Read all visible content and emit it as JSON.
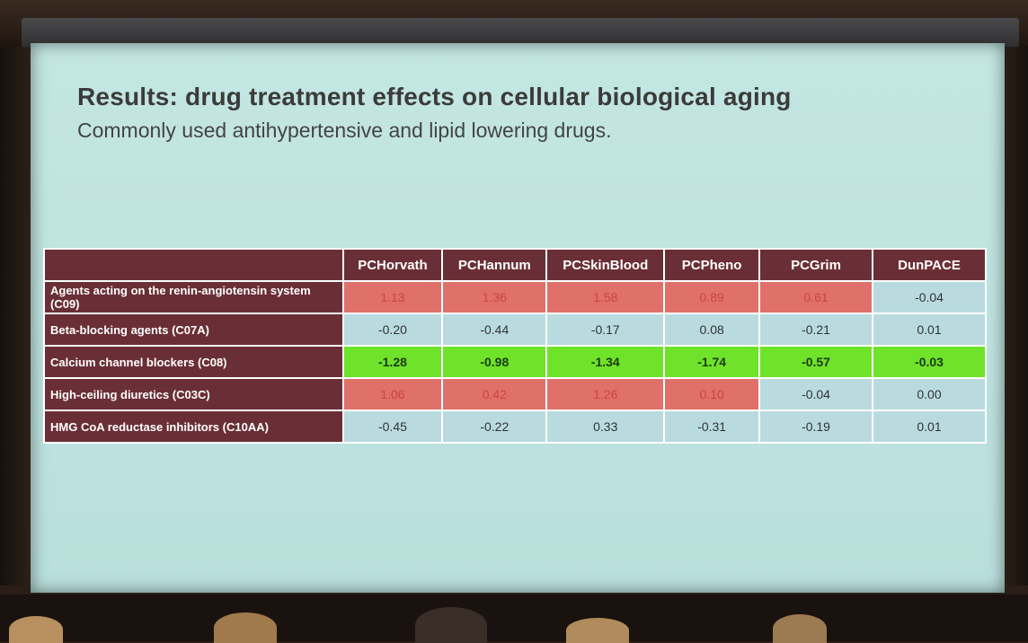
{
  "slide": {
    "title": "Results: drug treatment effects on cellular biological aging",
    "subtitle": "Commonly used antihypertensive and lipid lowering drugs."
  },
  "table": {
    "columns": [
      "PCHorvath",
      "PCHannum",
      "PCSkinBlood",
      "PCPheno",
      "PCGrim",
      "DunPACE"
    ],
    "rows": [
      {
        "label": "Agents acting on the renin-angiotensin system (C09)",
        "values": [
          "1.13",
          "1.36",
          "1.58",
          "0.89",
          "0.61",
          "-0.04"
        ]
      },
      {
        "label": "Beta-blocking agents (C07A)",
        "values": [
          "-0.20",
          "-0.44",
          "-0.17",
          "0.08",
          "-0.21",
          "0.01"
        ]
      },
      {
        "label": "Calcium channel blockers (C08)",
        "values": [
          "-1.28",
          "-0.98",
          "-1.34",
          "-1.74",
          "-0.57",
          "-0.03"
        ]
      },
      {
        "label": "High-ceiling diuretics (C03C)",
        "values": [
          "1.06",
          "0.42",
          "1.26",
          "0.10",
          "-0.04",
          "0.00"
        ]
      },
      {
        "label": "HMG CoA reductase inhibitors (C10AA)",
        "values": [
          "-0.45",
          "-0.22",
          "0.33",
          "-0.31",
          "-0.19",
          "0.01"
        ]
      }
    ]
  },
  "colors": {
    "header_bg": "#6a2f36",
    "red": "#e0706a",
    "green": "#6fe22a",
    "neutral": "#b9dbe0"
  },
  "cell_colors": [
    [
      "red",
      "red",
      "red",
      "red",
      "red",
      "neutral"
    ],
    [
      "neutral",
      "neutral",
      "neutral",
      "neutral",
      "neutral",
      "neutral"
    ],
    [
      "green",
      "green",
      "green",
      "green",
      "green",
      "green"
    ],
    [
      "red",
      "red",
      "red",
      "red",
      "neutral",
      "neutral"
    ],
    [
      "neutral",
      "neutral",
      "neutral",
      "neutral",
      "neutral",
      "neutral"
    ]
  ]
}
